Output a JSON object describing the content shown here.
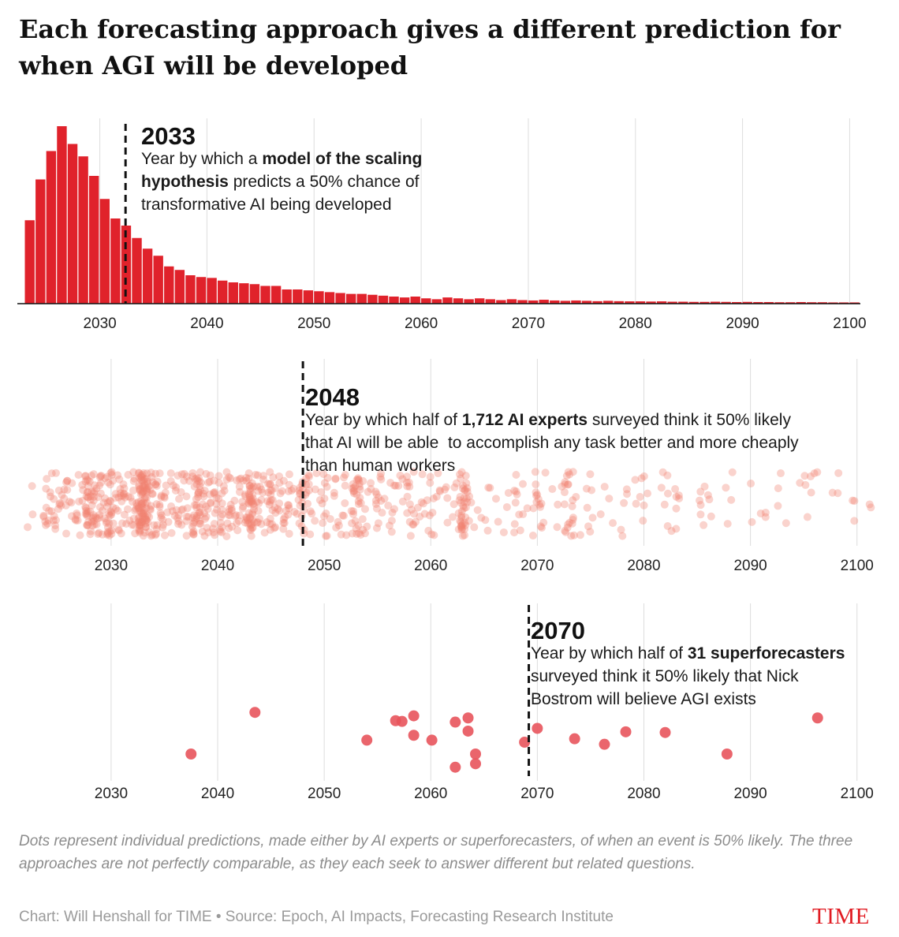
{
  "title": "Each forecasting approach gives a different prediction for when AGI will be developed",
  "note": "Dots represent individual predictions, made either by AI experts or superforecasters, of when an event is 50% likely. The three approaches are not perfectly comparable, as they each seek to answer different but related questions.",
  "credit": "Chart: Will Henshall for TIME • Source: Epoch, AI Impacts, Forecasting Research Institute",
  "brand": "TIME",
  "colors": {
    "bar": "#e0222b",
    "expert_dot": "#f0826f",
    "forecaster_dot": "#e8545c",
    "gridline": "#dddddd",
    "median_line": "#111111",
    "brand": "#e11b22"
  },
  "chart_data": [
    {
      "type": "bar",
      "title": "2033",
      "annotation": [
        [
          {
            "t": "Year by which a "
          },
          {
            "t": "model of the scaling",
            "b": true
          }
        ],
        [
          {
            "t": "hypothesis",
            "b": true
          },
          {
            "t": " predicts a 50% chance of"
          }
        ],
        [
          {
            "t": "transformative AI being developed"
          }
        ]
      ],
      "median": 2032.4,
      "xlim": [
        2022.3,
        2101
      ],
      "ylim": [
        0,
        100
      ],
      "xticks": [
        2030,
        2040,
        2050,
        2060,
        2070,
        2080,
        2090,
        2100
      ],
      "bin_start": 2023,
      "bin_width": 1,
      "values": [
        47,
        70,
        86,
        100,
        90,
        83,
        72,
        59,
        48,
        44,
        37,
        31,
        27,
        21,
        19,
        16,
        15,
        14.5,
        13,
        12,
        11.5,
        11,
        10,
        10,
        8,
        8,
        7.5,
        7,
        6.5,
        6,
        5.5,
        5.5,
        5,
        4.5,
        4,
        3.5,
        4,
        3,
        2.5,
        3.5,
        3,
        2.5,
        3,
        2.5,
        2,
        2.5,
        2,
        1.8,
        2.2,
        1.8,
        1.6,
        1.8,
        1.6,
        1.4,
        1.6,
        1.4,
        1.3,
        1.3,
        1.2,
        1.3,
        1.1,
        1.1,
        1,
        1,
        1.1,
        1,
        0.9,
        1,
        0.9,
        0.9,
        0.8,
        0.8,
        0.9,
        0.8,
        0.8,
        0.7,
        0.7,
        0.7
      ]
    },
    {
      "type": "scatter",
      "title": "2048",
      "annotation": [
        [
          {
            "t": "Year by which half of "
          },
          {
            "t": "1,712 AI experts",
            "b": true
          },
          {
            "t": " surveyed think it 50% likely"
          }
        ],
        [
          {
            "t": "that AI will be able  to accomplish any task better and more cheaply"
          }
        ],
        [
          {
            "t": "than human workers"
          }
        ]
      ],
      "median": 2048,
      "xlim": [
        2021.2,
        2101.5
      ],
      "xticks": [
        2030,
        2040,
        2050,
        2060,
        2070,
        2080,
        2090,
        2100
      ],
      "n_points": 1712,
      "density": [
        {
          "year": 2022.5,
          "weight": 0.3
        },
        {
          "year": 2024,
          "weight": 1.4
        },
        {
          "year": 2025,
          "weight": 1.3
        },
        {
          "year": 2026,
          "weight": 1.2
        },
        {
          "year": 2027,
          "weight": 1.1
        },
        {
          "year": 2028,
          "weight": 4.5
        },
        {
          "year": 2029,
          "weight": 2.2
        },
        {
          "year": 2030,
          "weight": 3.2
        },
        {
          "year": 2031,
          "weight": 2
        },
        {
          "year": 2032,
          "weight": 1.8
        },
        {
          "year": 2033,
          "weight": 9
        },
        {
          "year": 2034,
          "weight": 2.5
        },
        {
          "year": 2035,
          "weight": 1.8
        },
        {
          "year": 2036,
          "weight": 1.6
        },
        {
          "year": 2037,
          "weight": 1.5
        },
        {
          "year": 2038,
          "weight": 4
        },
        {
          "year": 2039,
          "weight": 2
        },
        {
          "year": 2040,
          "weight": 2.5
        },
        {
          "year": 2041,
          "weight": 1.7
        },
        {
          "year": 2042,
          "weight": 1.6
        },
        {
          "year": 2043,
          "weight": 5
        },
        {
          "year": 2044,
          "weight": 1.8
        },
        {
          "year": 2045,
          "weight": 2.5
        },
        {
          "year": 2046,
          "weight": 1.4
        },
        {
          "year": 2047,
          "weight": 1.2
        },
        {
          "year": 2048,
          "weight": 2.2
        },
        {
          "year": 2049,
          "weight": 1
        },
        {
          "year": 2050,
          "weight": 1.3
        },
        {
          "year": 2051,
          "weight": 0.8
        },
        {
          "year": 2052,
          "weight": 0.8
        },
        {
          "year": 2053,
          "weight": 3
        },
        {
          "year": 2054,
          "weight": 0.9
        },
        {
          "year": 2055,
          "weight": 1.3
        },
        {
          "year": 2056,
          "weight": 0.7
        },
        {
          "year": 2057,
          "weight": 0.7
        },
        {
          "year": 2058,
          "weight": 1.5
        },
        {
          "year": 2059,
          "weight": 0.7
        },
        {
          "year": 2060,
          "weight": 0.9
        },
        {
          "year": 2061,
          "weight": 0.6
        },
        {
          "year": 2062,
          "weight": 0.6
        },
        {
          "year": 2063,
          "weight": 4
        },
        {
          "year": 2064,
          "weight": 0.5
        },
        {
          "year": 2065,
          "weight": 0.4
        },
        {
          "year": 2066,
          "weight": 0.3
        },
        {
          "year": 2067,
          "weight": 0.3
        },
        {
          "year": 2068,
          "weight": 0.9
        },
        {
          "year": 2069,
          "weight": 0.3
        },
        {
          "year": 2070,
          "weight": 1.4
        },
        {
          "year": 2071,
          "weight": 0.3
        },
        {
          "year": 2072,
          "weight": 0.3
        },
        {
          "year": 2073,
          "weight": 2.2
        },
        {
          "year": 2074,
          "weight": 0.2
        },
        {
          "year": 2075,
          "weight": 0.7
        },
        {
          "year": 2076,
          "weight": 0.2
        },
        {
          "year": 2077,
          "weight": 0.2
        },
        {
          "year": 2078,
          "weight": 0.5
        },
        {
          "year": 2079,
          "weight": 0.2
        },
        {
          "year": 2080,
          "weight": 0.6
        },
        {
          "year": 2082,
          "weight": 0.6
        },
        {
          "year": 2083,
          "weight": 0.7
        },
        {
          "year": 2085,
          "weight": 0.4
        },
        {
          "year": 2086,
          "weight": 0.5
        },
        {
          "year": 2088,
          "weight": 0.4
        },
        {
          "year": 2090,
          "weight": 0.2
        },
        {
          "year": 2091,
          "weight": 0.3
        },
        {
          "year": 2093,
          "weight": 0.4
        },
        {
          "year": 2095,
          "weight": 0.4
        },
        {
          "year": 2096,
          "weight": 0.4
        },
        {
          "year": 2098,
          "weight": 0.3
        },
        {
          "year": 2100,
          "weight": 0.3
        },
        {
          "year": 2101,
          "weight": 0.2
        }
      ]
    },
    {
      "type": "scatter",
      "title": "2070",
      "annotation": [
        [
          {
            "t": "Year by which half of "
          },
          {
            "t": "31 superforecasters",
            "b": true
          }
        ],
        [
          {
            "t": "surveyed think it 50% likely that Nick"
          }
        ],
        [
          {
            "t": "Bostrom will believe AGI exists"
          }
        ]
      ],
      "median": 2069.2,
      "xlim": [
        2021.2,
        2101.5
      ],
      "xticks": [
        2030,
        2040,
        2050,
        2060,
        2070,
        2080,
        2090,
        2100
      ],
      "points": [
        {
          "x": 2037.5,
          "y": 0.25
        },
        {
          "x": 2043.5,
          "y": 0.85
        },
        {
          "x": 2054,
          "y": 0.45
        },
        {
          "x": 2056.7,
          "y": 0.73
        },
        {
          "x": 2057.3,
          "y": 0.72
        },
        {
          "x": 2058.4,
          "y": 0.52
        },
        {
          "x": 2058.4,
          "y": 0.8
        },
        {
          "x": 2060.1,
          "y": 0.45
        },
        {
          "x": 2062.3,
          "y": 0.06
        },
        {
          "x": 2062.3,
          "y": 0.71
        },
        {
          "x": 2063.5,
          "y": 0.58
        },
        {
          "x": 2063.5,
          "y": 0.77
        },
        {
          "x": 2064.2,
          "y": 0.11
        },
        {
          "x": 2064.2,
          "y": 0.25
        },
        {
          "x": 2068.8,
          "y": 0.42
        },
        {
          "x": 2070,
          "y": 0.62
        },
        {
          "x": 2073.5,
          "y": 0.47
        },
        {
          "x": 2076.3,
          "y": 0.39
        },
        {
          "x": 2078.3,
          "y": 0.57
        },
        {
          "x": 2082,
          "y": 0.56
        },
        {
          "x": 2087.8,
          "y": 0.25
        },
        {
          "x": 2096.3,
          "y": 0.77
        }
      ]
    }
  ]
}
